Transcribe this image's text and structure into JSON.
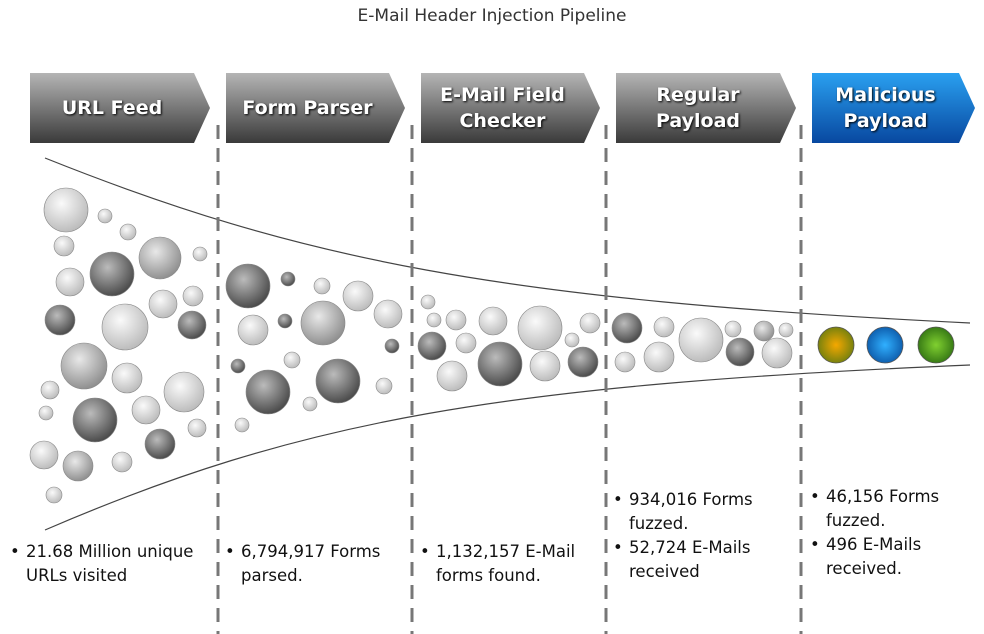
{
  "title": "E-Mail Header Injection Pipeline",
  "stages": [
    {
      "label": "URL Feed",
      "notes": [
        "21.68 Million unique URLs visited"
      ]
    },
    {
      "label": "Form Parser",
      "notes": [
        "6,794,917 Forms parsed."
      ]
    },
    {
      "label": "E-Mail Field Checker",
      "notes": [
        "1,132,157 E-Mail forms found."
      ]
    },
    {
      "label": "Regular Payload",
      "notes": [
        "934,016 Forms fuzzed.",
        "52,724 E-Mails received"
      ]
    },
    {
      "label": "Malicious Payload",
      "notes": [
        "46,156 Forms fuzzed.",
        "496 E-Mails received."
      ]
    }
  ]
}
